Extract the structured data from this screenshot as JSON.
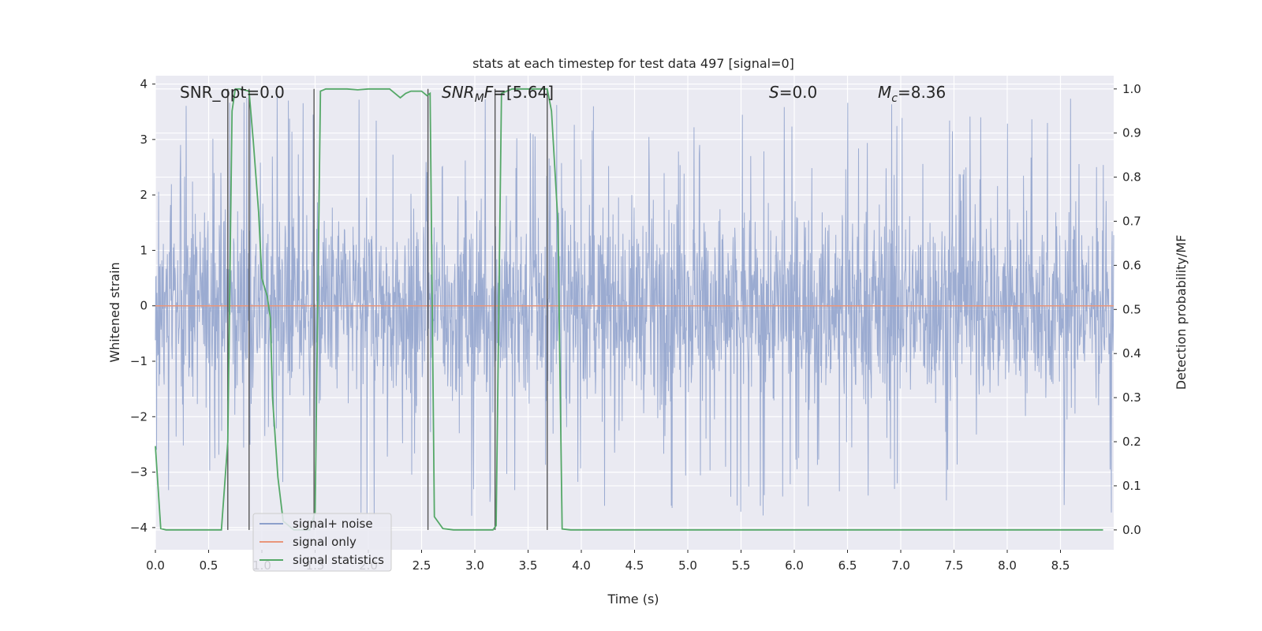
{
  "chart_data": {
    "type": "line",
    "title": "stats at each timestep for test data 497 [signal=0]",
    "xlabel": "Time (s)",
    "ylabel": "Whitened strain",
    "y2label": "Detection probability/MF",
    "xlim": [
      0.0,
      9.0
    ],
    "ylim": [
      -4.4,
      4.15
    ],
    "y2lim": [
      -0.045,
      1.03
    ],
    "xticks": [
      "0.0",
      "0.5",
      "1.0",
      "1.5",
      "2.0",
      "2.5",
      "3.0",
      "3.5",
      "4.0",
      "4.5",
      "5.0",
      "5.5",
      "6.0",
      "6.5",
      "7.0",
      "7.5",
      "8.0",
      "8.5"
    ],
    "yticks": [
      "4",
      "3",
      "2",
      "1",
      "0",
      "−1",
      "−2",
      "−3",
      "−4"
    ],
    "y2ticks": [
      "1.0",
      "0.9",
      "0.8",
      "0.7",
      "0.6",
      "0.5",
      "0.4",
      "0.3",
      "0.2",
      "0.1",
      "0.0"
    ],
    "grid": true,
    "legend_position": "lower-left",
    "annotations": [
      {
        "text": "SNR_opt=0.0"
      },
      {
        "text": "SNR_MF=[5.64]"
      },
      {
        "text": "S=0.0"
      },
      {
        "text": "M_c=8.36"
      }
    ],
    "vlines": [
      0.68,
      0.88,
      1.49,
      2.56,
      3.19,
      3.68
    ],
    "series": [
      {
        "name": "signal+ noise",
        "color": "#8da0cb",
        "description": "dense whitened-strain noise, roughly within ±3.5",
        "amplitude_core": 1.6,
        "amplitude_peak": 3.8
      },
      {
        "name": "signal only",
        "color": "#e9967a",
        "x": [
          0.0,
          9.0
        ],
        "y": [
          0.0,
          0.0
        ]
      },
      {
        "name": "signal statistics",
        "color": "#55a868",
        "axis": "right",
        "x": [
          0.0,
          0.05,
          0.1,
          0.2,
          0.3,
          0.4,
          0.5,
          0.62,
          0.68,
          0.72,
          0.75,
          0.8,
          0.88,
          0.92,
          0.97,
          1.0,
          1.05,
          1.08,
          1.1,
          1.15,
          1.2,
          1.3,
          1.4,
          1.45,
          1.5,
          1.55,
          1.6,
          1.7,
          1.8,
          1.9,
          2.0,
          2.1,
          2.2,
          2.3,
          2.35,
          2.4,
          2.5,
          2.55,
          2.58,
          2.62,
          2.7,
          2.8,
          2.9,
          3.0,
          3.1,
          3.17,
          3.2,
          3.25,
          3.3,
          3.35,
          3.4,
          3.5,
          3.6,
          3.68,
          3.72,
          3.78,
          3.82,
          3.9,
          4.0,
          5.0,
          6.0,
          7.0,
          8.0,
          8.9
        ],
        "y": [
          0.19,
          0.003,
          0.0,
          0.0,
          0.0,
          0.0,
          0.0,
          0.0,
          0.2,
          0.95,
          1.0,
          1.0,
          0.995,
          0.88,
          0.72,
          0.57,
          0.53,
          0.48,
          0.3,
          0.12,
          0.02,
          0.0,
          0.0,
          0.0,
          0.04,
          0.995,
          1.0,
          1.0,
          1.0,
          0.998,
          1.0,
          1.0,
          1.0,
          0.98,
          0.99,
          0.995,
          0.995,
          0.985,
          0.99,
          0.03,
          0.003,
          0.0,
          0.0,
          0.0,
          0.0,
          0.0,
          0.01,
          0.99,
          0.995,
          1.0,
          1.0,
          1.0,
          1.0,
          1.0,
          0.95,
          0.7,
          0.002,
          0.0,
          0.0,
          0.0,
          0.0,
          0.0,
          0.0,
          0.0
        ]
      }
    ]
  }
}
